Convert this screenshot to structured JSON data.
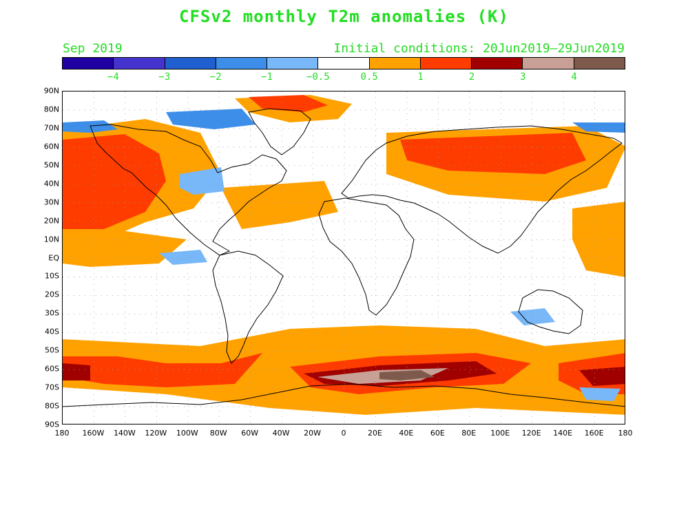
{
  "title": "CFSv2 monthly T2m anomalies (K)",
  "month_label": "Sep 2019",
  "init_label": "Initial conditions: 20Jun2019–29Jun2019",
  "colorbar": {
    "colors": [
      "#1f00a0",
      "#4433cc",
      "#1f5fd0",
      "#3c8ee8",
      "#78b8f8",
      "#ffffff",
      "#ffa200",
      "#ff3c00",
      "#a00000",
      "#c8a096",
      "#7d5a4b"
    ],
    "labels": [
      "−4",
      "−3",
      "−2",
      "−1",
      "−0.5",
      "0.5",
      "1",
      "2",
      "3",
      "4"
    ]
  },
  "map": {
    "lat_labels": [
      "90N",
      "80N",
      "70N",
      "60N",
      "50N",
      "40N",
      "30N",
      "20N",
      "10N",
      "EQ",
      "10S",
      "20S",
      "30S",
      "40S",
      "50S",
      "60S",
      "70S",
      "80S",
      "90S"
    ],
    "lon_labels": [
      "180",
      "160W",
      "140W",
      "120W",
      "100W",
      "80W",
      "60W",
      "40W",
      "20W",
      "0",
      "20E",
      "40E",
      "60E",
      "80E",
      "100E",
      "120E",
      "140E",
      "160E",
      "180"
    ],
    "grid": true,
    "land_color": "#ffffff",
    "coastline_color": "#000000",
    "anomaly_colors": {
      "weak_warm": "#ffa200",
      "warm": "#ff3c00",
      "hot": "#a00000",
      "very_hot": "#c8a096",
      "extreme": "#7d5a4b",
      "cool": "#78b8f8",
      "cold": "#3c8ee8",
      "very_cold": "#1f5fd0"
    }
  }
}
